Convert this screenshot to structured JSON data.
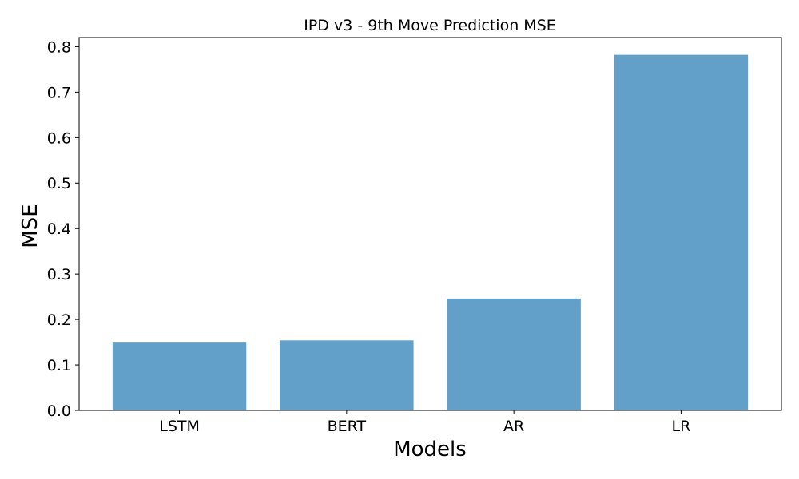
{
  "chart_data": {
    "type": "bar",
    "title": "IPD v3 - 9th Move Prediction MSE",
    "xlabel": "Models",
    "ylabel": "MSE",
    "categories": [
      "LSTM",
      "BERT",
      "AR",
      "LR"
    ],
    "values": [
      0.149,
      0.154,
      0.246,
      0.782
    ],
    "ylim": [
      0,
      0.82
    ],
    "yticks": [
      "0.0",
      "0.1",
      "0.2",
      "0.3",
      "0.4",
      "0.5",
      "0.6",
      "0.7",
      "0.8"
    ],
    "grid": false,
    "legend": "none",
    "bar_color": "#62a0ca"
  }
}
